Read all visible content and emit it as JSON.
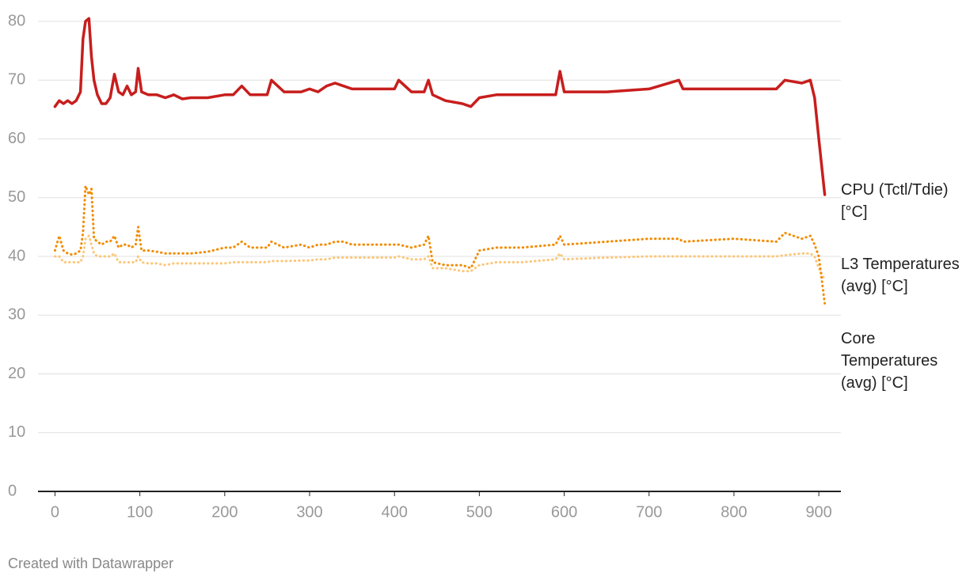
{
  "chart_data": {
    "type": "line",
    "x": [
      0,
      5,
      10,
      15,
      20,
      25,
      30,
      33,
      36,
      40,
      43,
      46,
      50,
      55,
      60,
      65,
      70,
      75,
      80,
      85,
      90,
      95,
      98,
      102,
      110,
      120,
      130,
      140,
      150,
      160,
      180,
      200,
      210,
      220,
      230,
      250,
      255,
      270,
      290,
      300,
      310,
      320,
      330,
      340,
      350,
      370,
      400,
      405,
      420,
      435,
      440,
      445,
      460,
      480,
      490,
      500,
      520,
      550,
      590,
      595,
      600,
      650,
      700,
      735,
      740,
      800,
      850,
      860,
      880,
      890,
      895,
      900,
      907
    ],
    "series": [
      {
        "name": "CPU (Tctl/Tdie) [°C]",
        "color": "#c71e1d",
        "style": "solid",
        "values": [
          65.5,
          66.5,
          66,
          66.5,
          66,
          66.5,
          68,
          77,
          80,
          80.5,
          74,
          70,
          67.5,
          66,
          66,
          67,
          71,
          68,
          67.5,
          69,
          67.5,
          68,
          72,
          68,
          67.5,
          67.5,
          67,
          67.5,
          66.8,
          67,
          67,
          67.5,
          67.5,
          69,
          67.5,
          67.5,
          70,
          68,
          68,
          68.5,
          68,
          69,
          69.5,
          69,
          68.5,
          68.5,
          68.5,
          70,
          68,
          68,
          70,
          67.5,
          66.5,
          66,
          65.5,
          67,
          67.5,
          67.5,
          67.5,
          71.5,
          68,
          68,
          68.5,
          70,
          68.5,
          68.5,
          68.5,
          70,
          69.5,
          70,
          67,
          60,
          50.5
        ]
      },
      {
        "name": "L3 Temperatures (avg) [°C]",
        "color": "#fcc77a",
        "style": "dotted",
        "values": [
          40,
          40,
          39,
          39,
          39,
          39,
          39,
          40,
          43,
          43.5,
          42,
          40.5,
          40,
          40,
          40,
          40,
          40.5,
          39,
          39,
          39,
          39,
          39,
          40,
          39,
          38.8,
          38.8,
          38.5,
          38.8,
          38.8,
          38.8,
          38.8,
          38.8,
          39,
          39,
          39,
          39,
          39.2,
          39.2,
          39.3,
          39.3,
          39.5,
          39.5,
          39.8,
          39.8,
          39.8,
          39.8,
          39.8,
          40,
          39.5,
          39.5,
          40,
          38,
          38,
          37.5,
          37.5,
          38.5,
          39,
          39,
          39.5,
          40.5,
          39.5,
          39.8,
          40,
          40,
          40,
          40,
          40,
          40.2,
          40.5,
          40.5,
          40,
          38,
          36
        ]
      },
      {
        "name": "Core Temperatures (avg) [°C]",
        "color": "#f28c00",
        "style": "dotted",
        "values": [
          41,
          43.5,
          41,
          40.5,
          40.3,
          40.5,
          41,
          44,
          52,
          50.5,
          51.5,
          43,
          42.5,
          42,
          42.5,
          42.5,
          43.5,
          41.5,
          42,
          42,
          41.5,
          42,
          45,
          41,
          41,
          40.8,
          40.5,
          40.5,
          40.5,
          40.5,
          40.8,
          41.5,
          41.5,
          42.5,
          41.5,
          41.5,
          42.5,
          41.5,
          42,
          41.5,
          42,
          42,
          42.5,
          42.5,
          42,
          42,
          42,
          42,
          41.5,
          42,
          43.5,
          39,
          38.5,
          38.5,
          38,
          41,
          41.5,
          41.5,
          42,
          43.5,
          42,
          42.5,
          43,
          43,
          42.5,
          43,
          42.5,
          44,
          43,
          43.5,
          42,
          40,
          32
        ]
      }
    ],
    "xlim": [
      -20,
      926
    ],
    "ylim": [
      0,
      80
    ],
    "xticks": [
      0,
      100,
      200,
      300,
      400,
      500,
      600,
      700,
      800,
      900
    ],
    "yticks": [
      0,
      10,
      20,
      30,
      40,
      50,
      60,
      70,
      80
    ],
    "grid": true,
    "footer": "Created with Datawrapper"
  }
}
